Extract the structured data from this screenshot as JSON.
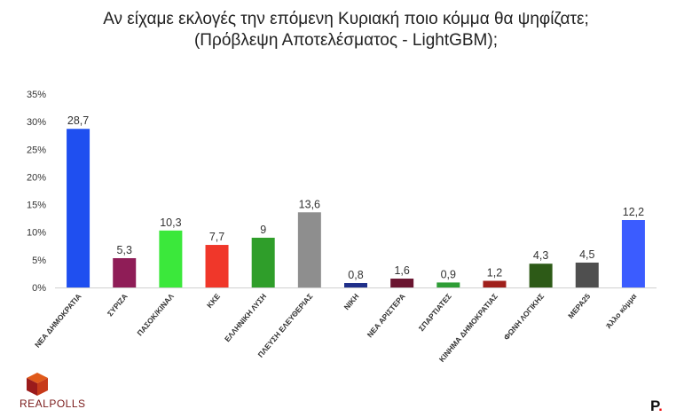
{
  "title_line1": "Αν είχαμε εκλογές την επόμενη Κυριακή ποιο κόμμα θα ψηφίζατε;",
  "title_line2": "(Πρόβλεψη Αποτελέσματος - LightGBM);",
  "logo_text": "REALPOLLS",
  "corner_mark": "P",
  "corner_dot": ".",
  "chart_data": {
    "type": "bar",
    "title": "Αν είχαμε εκλογές την επόμενη Κυριακή ποιο κόμμα θα ψηφίζατε; (Πρόβλεψη Αποτελέσματος - LightGBM);",
    "xlabel": "",
    "ylabel": "",
    "ylim": [
      0,
      35
    ],
    "yticks": [
      "0%",
      "5%",
      "10%",
      "15%",
      "20%",
      "25%",
      "30%",
      "35%"
    ],
    "grid": false,
    "legend": "none",
    "categories": [
      "ΝΕΑ ΔΗΜΟΚΡΑΤΙΑ",
      "ΣΥΡΙΖΑ",
      "ΠΑΣΟΚ/ΚΙΝΑΛ",
      "ΚΚΕ",
      "ΕΛΛΗΝΙΚΗ ΛΥΣΗ",
      "ΠΛΕΥΣΗ ΕΛΕΥΘΕΡΙΑΣ",
      "ΝΙΚΗ",
      "ΝΕΑ ΑΡΙΣΤΕΡΑ",
      "ΣΠΑΡΤΙΑΤΕΣ",
      "ΚΙΝΗΜΑ ΔΗΜΟΚΡΑΤΙΑΣ",
      "ΦΩΝΗ ΛΟΓΙΚΗΣ",
      "ΜΕΡΑ25",
      "Άλλο κόμμα"
    ],
    "values": [
      28.7,
      5.3,
      10.3,
      7.7,
      9,
      13.6,
      0.8,
      1.6,
      0.9,
      1.2,
      4.3,
      4.5,
      12.2
    ],
    "value_labels": [
      "28,7",
      "5,3",
      "10,3",
      "7,7",
      "9",
      "13,6",
      "0,8",
      "1,6",
      "0,9",
      "1,2",
      "4,3",
      "4,5",
      "12,2"
    ],
    "colors": [
      "#1f4ff0",
      "#8f1d57",
      "#3be83b",
      "#f0372a",
      "#2f9e2a",
      "#8e8e8e",
      "#1f2f8a",
      "#6a1530",
      "#2e9d36",
      "#a0201c",
      "#2d5a17",
      "#4f4f4f",
      "#3b5cff"
    ]
  }
}
